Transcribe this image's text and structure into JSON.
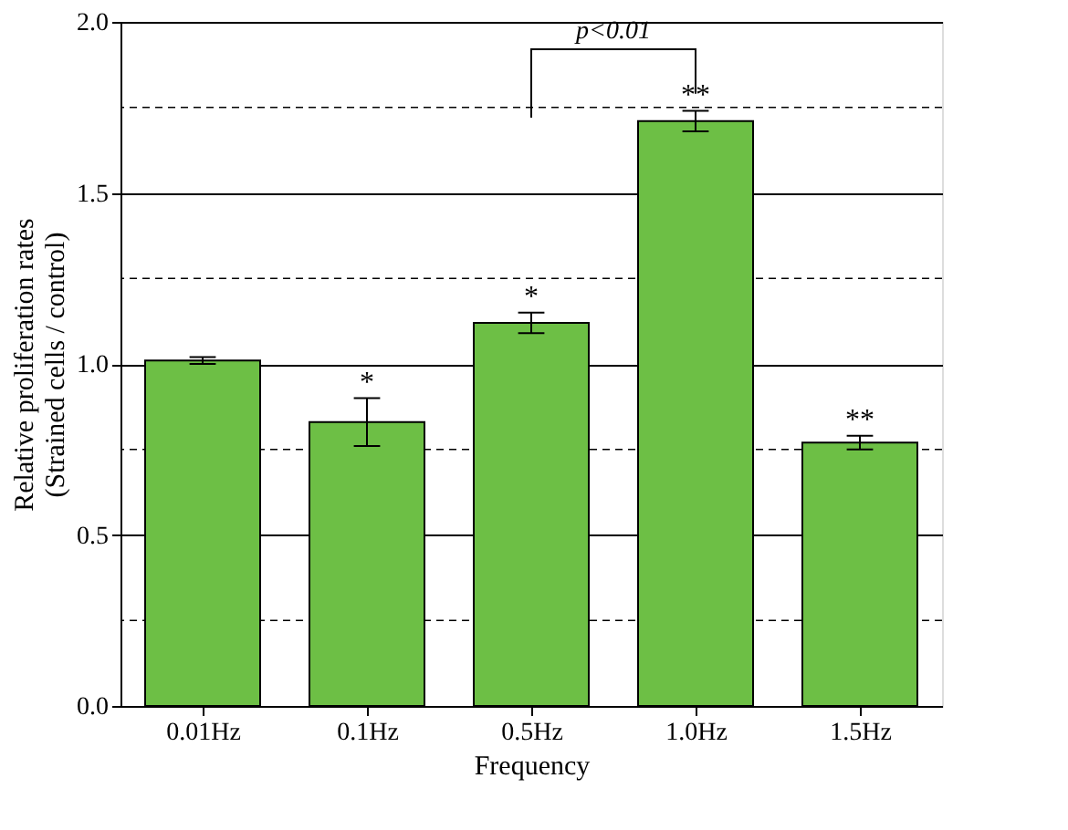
{
  "chart_data": {
    "type": "bar",
    "xlabel": "Frequency",
    "ylabel": "Relative proliferation rates\n(Strained cells / control)",
    "categories": [
      "0.01Hz",
      "0.1Hz",
      "0.5Hz",
      "1.0Hz",
      "1.5Hz"
    ],
    "values": [
      1.01,
      0.83,
      1.12,
      1.71,
      0.77
    ],
    "errors": [
      0.01,
      0.07,
      0.03,
      0.03,
      0.02
    ],
    "color": "#6dbf45",
    "ylim": [
      0,
      2.0
    ],
    "yticks": [
      {
        "value": 0,
        "label": "0.0"
      },
      0.5,
      {
        "value": 1,
        "label": "1.0"
      },
      1.5,
      {
        "value": 2,
        "label": "2.0"
      }
    ],
    "grid": "y",
    "ref_lines": [
      {
        "axis": "y",
        "value": 0.25,
        "line_style": "dashed"
      },
      {
        "axis": "y",
        "value": 0.75,
        "line_style": "dashed"
      },
      {
        "axis": "y",
        "value": 1.25,
        "line_style": "dashed"
      },
      {
        "axis": "y",
        "value": 1.75,
        "line_style": "dashed"
      }
    ],
    "annotations": [
      {
        "text": "*",
        "x": "0.1Hz",
        "y": 0.9
      },
      {
        "text": "*",
        "x": "0.5Hz",
        "y": 1.15
      },
      {
        "text": "**",
        "x": "1.0Hz",
        "y": 1.74
      },
      {
        "text": "**",
        "x": "1.5Hz",
        "y": 0.79
      },
      "p<0.01"
    ]
  }
}
